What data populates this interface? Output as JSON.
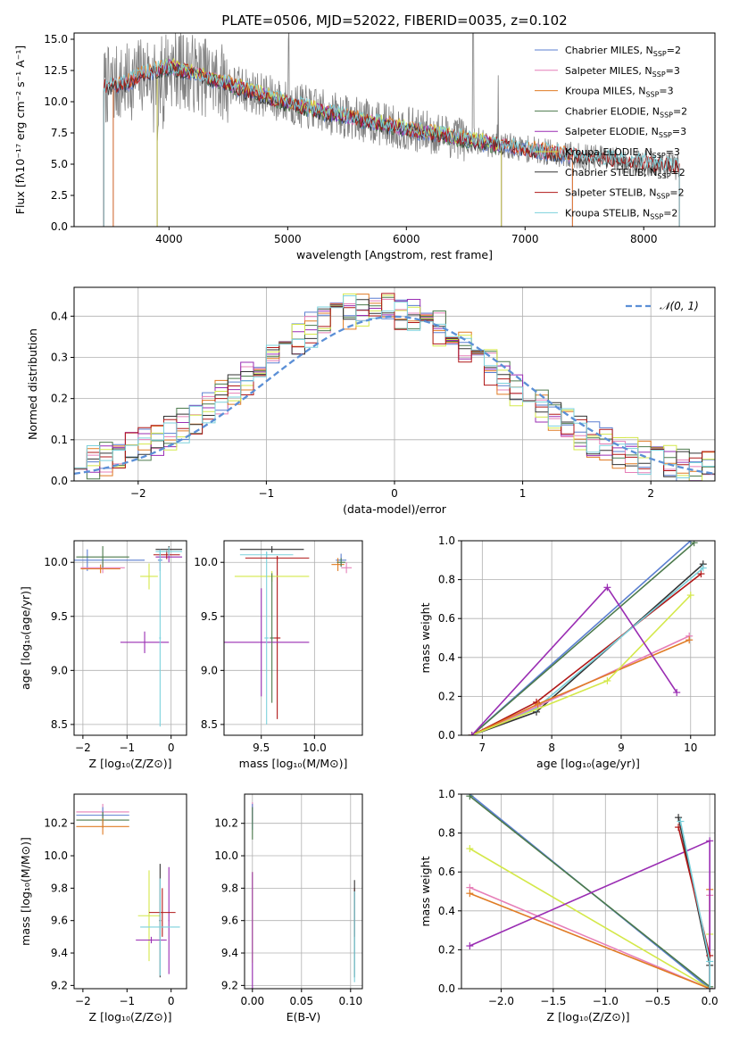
{
  "figure": {
    "title": "PLATE=0506, MJD=52022, FIBERID=0035, z=0.102"
  },
  "colors": {
    "Chabrier MILES": "#5B7FD1",
    "Salpeter MILES": "#E67FB8",
    "Kroupa MILES": "#E07B24",
    "Chabrier ELODIE": "#4C7A4C",
    "Salpeter ELODIE": "#9A2DB3",
    "Kroupa ELODIE": "#D4E84A",
    "Chabrier STELIB": "#333333",
    "Salpeter STELIB": "#B01818",
    "Kroupa STELIB": "#7BD1DC",
    "data": "#808080",
    "normal": "#5B8FD6"
  },
  "chart_data": [
    {
      "id": "spectrum",
      "type": "line",
      "xlabel": "wavelength [Angstrom, rest frame]",
      "ylabel": "Flux [fλ10⁻¹⁷ erg cm⁻² s⁻¹ A⁻¹]",
      "xlim": [
        3200,
        8600
      ],
      "ylim": [
        0,
        15.5
      ],
      "xticks": [
        4000,
        5000,
        6000,
        7000,
        8000
      ],
      "yticks": [
        0.0,
        2.5,
        5.0,
        7.5,
        10.0,
        12.5,
        15.0
      ],
      "legend_position": "top-right",
      "legend": [
        {
          "name": "Chabrier MILES, N",
          "sub": "SSP",
          "suffix": "=2"
        },
        {
          "name": "Salpeter MILES, N",
          "sub": "SSP",
          "suffix": "=3"
        },
        {
          "name": "Kroupa MILES, N",
          "sub": "SSP",
          "suffix": "=3"
        },
        {
          "name": "Chabrier ELODIE, N",
          "sub": "SSP",
          "suffix": "=2"
        },
        {
          "name": "Salpeter ELODIE, N",
          "sub": "SSP",
          "suffix": "=3"
        },
        {
          "name": "Kroupa ELODIE, N",
          "sub": "SSP",
          "suffix": "=3"
        },
        {
          "name": "Chabrier STELIB, N",
          "sub": "SSP",
          "suffix": "=2"
        },
        {
          "name": "Salpeter STELIB, N",
          "sub": "SSP",
          "suffix": "=2"
        },
        {
          "name": "Kroupa STELIB, N",
          "sub": "SSP",
          "suffix": "=2"
        }
      ],
      "continuum": [
        [
          3450,
          11.2
        ],
        [
          3650,
          11.5
        ],
        [
          3800,
          12.3
        ],
        [
          4000,
          12.8
        ],
        [
          4200,
          12.3
        ],
        [
          4400,
          11.7
        ],
        [
          4700,
          10.8
        ],
        [
          5000,
          9.9
        ],
        [
          5300,
          9.2
        ],
        [
          5600,
          8.6
        ],
        [
          5900,
          8.0
        ],
        [
          6200,
          7.5
        ],
        [
          6500,
          7.0
        ],
        [
          6800,
          6.5
        ],
        [
          7100,
          6.1
        ],
        [
          7400,
          5.7
        ],
        [
          7700,
          5.4
        ],
        [
          8000,
          5.1
        ],
        [
          8200,
          4.9
        ],
        [
          8300,
          4.8
        ]
      ],
      "data_range": [
        3450,
        8300
      ],
      "models": [
        {
          "name": "Chabrier MILES",
          "range": [
            3530,
            7400
          ]
        },
        {
          "name": "Salpeter MILES",
          "range": [
            3530,
            7400
          ]
        },
        {
          "name": "Kroupa MILES",
          "range": [
            3530,
            7400
          ]
        },
        {
          "name": "Chabrier ELODIE",
          "range": [
            3900,
            6800
          ]
        },
        {
          "name": "Salpeter ELODIE",
          "range": [
            3900,
            6800
          ]
        },
        {
          "name": "Kroupa ELODIE",
          "range": [
            3900,
            6800
          ]
        },
        {
          "name": "Chabrier STELIB",
          "range": [
            3450,
            8300
          ]
        },
        {
          "name": "Salpeter STELIB",
          "range": [
            3450,
            8300
          ]
        },
        {
          "name": "Kroupa STELIB",
          "range": [
            3450,
            8300
          ]
        }
      ]
    },
    {
      "id": "residuals",
      "type": "line",
      "xlabel": "(data-model)/error",
      "ylabel": "Normed distribution",
      "xlim": [
        -2.5,
        2.5
      ],
      "ylim": [
        0,
        0.47
      ],
      "xticks": [
        -2,
        -1,
        0,
        1,
        2
      ],
      "yticks": [
        0.0,
        0.1,
        0.2,
        0.3,
        0.4
      ],
      "grid": true,
      "legend_position": "top-right",
      "legend": [
        {
          "name": "𝒩(0, 1)",
          "style": "dashed"
        }
      ],
      "bin_width": 0.1
    },
    {
      "id": "age-vs-Z",
      "type": "scatter",
      "xlabel": "Z [log₁₀(Z/Z⊙)]",
      "ylabel": "age  [log₁₀(age/yr)]",
      "xlim": [
        -2.2,
        0.35
      ],
      "ylim": [
        8.4,
        10.2
      ],
      "xticks": [
        -2,
        -1,
        0
      ],
      "yticks": [
        8.5,
        9.0,
        9.5,
        10.0
      ],
      "grid": true,
      "points": [
        {
          "model": "Chabrier MILES",
          "x": -1.9,
          "y": 10.02,
          "xerr": 1.3,
          "yerr": 0.1
        },
        {
          "model": "Chabrier MILES",
          "x": -0.25,
          "y": 10.02,
          "xerr": 0.05,
          "yerr": 0.1
        },
        {
          "model": "Salpeter MILES",
          "x": -1.55,
          "y": 9.95,
          "xerr": 0.5,
          "yerr": 0.05
        },
        {
          "model": "Kroupa MILES",
          "x": -1.6,
          "y": 9.94,
          "xerr": 0.45,
          "yerr": 0.04
        },
        {
          "model": "Chabrier ELODIE",
          "x": -1.55,
          "y": 10.05,
          "xerr": 0.6,
          "yerr": 0.1
        },
        {
          "model": "Salpeter ELODIE",
          "x": -0.6,
          "y": 9.26,
          "xerr": 0.55,
          "yerr": 0.1
        },
        {
          "model": "Salpeter ELODIE",
          "x": -0.05,
          "y": 10.05,
          "xerr": 0.3,
          "yerr": 0.05
        },
        {
          "model": "Kroupa ELODIE",
          "x": -0.5,
          "y": 9.87,
          "xerr": 0.2,
          "yerr": 0.12
        },
        {
          "model": "Chabrier STELIB",
          "x": -0.05,
          "y": 10.12,
          "xerr": 0.3,
          "yerr": 0.03
        },
        {
          "model": "Salpeter STELIB",
          "x": -0.1,
          "y": 10.07,
          "xerr": 0.3,
          "yerr": 0.04
        },
        {
          "model": "Kroupa STELIB",
          "x": -0.05,
          "y": 10.1,
          "xerr": 0.3,
          "yerr": 0.04
        },
        {
          "model": "Kroupa STELIB",
          "x": -0.25,
          "y": 9.3,
          "xerr": 0.02,
          "yerr": 0.82
        }
      ]
    },
    {
      "id": "age-vs-mass",
      "type": "scatter",
      "xlabel": "mass [log₁₀(M/M⊙)]",
      "xlim": [
        9.15,
        10.45
      ],
      "ylim": [
        8.4,
        10.2
      ],
      "xticks": [
        9.5,
        10.0
      ],
      "yticks": [
        8.5,
        9.0,
        9.5,
        10.0
      ],
      "grid": true,
      "points": [
        {
          "model": "Chabrier STELIB",
          "x": 9.6,
          "y": 10.12,
          "xerr": 0.3,
          "yerr": 0.03
        },
        {
          "model": "Salpeter STELIB",
          "x": 9.65,
          "y": 9.3,
          "xerr": 0.03,
          "yerr": 0.75
        },
        {
          "model": "Salpeter ELODIE",
          "x": 9.5,
          "y": 9.26,
          "xerr": 0.45,
          "yerr": 0.5
        },
        {
          "model": "Kroupa ELODIE",
          "x": 9.6,
          "y": 9.87,
          "xerr": 0.35,
          "yerr": 0.05
        },
        {
          "model": "Kroupa STELIB",
          "x": 9.55,
          "y": 10.07,
          "xerr": 0.25,
          "yerr": 0.03
        },
        {
          "model": "Kroupa STELIB",
          "x": 9.55,
          "y": 9.3,
          "xerr": 0.02,
          "yerr": 0.8
        },
        {
          "model": "Chabrier ELODIE",
          "x": 9.6,
          "y": 9.3,
          "xerr": 0.02,
          "yerr": 0.6
        },
        {
          "model": "Salpeter STELIB",
          "x": 9.65,
          "y": 10.04,
          "xerr": 0.3,
          "yerr": 0.02
        },
        {
          "model": "Chabrier MILES",
          "x": 10.25,
          "y": 10.02,
          "xerr": 0.05,
          "yerr": 0.06
        },
        {
          "model": "Salpeter MILES",
          "x": 10.3,
          "y": 9.95,
          "xerr": 0.05,
          "yerr": 0.05
        },
        {
          "model": "Kroupa MILES",
          "x": 10.22,
          "y": 9.98,
          "xerr": 0.06,
          "yerr": 0.06
        },
        {
          "model": "Chabrier ELODIE",
          "x": 10.25,
          "y": 10.0,
          "xerr": 0.04,
          "yerr": 0.04
        }
      ]
    },
    {
      "id": "weight-vs-age",
      "type": "line",
      "xlabel": "age  [log₁₀(age/yr)]",
      "ylabel": "mass weight",
      "xlim": [
        6.7,
        10.35
      ],
      "ylim": [
        0,
        1
      ],
      "xticks": [
        7,
        8,
        9,
        10
      ],
      "yticks": [
        0.0,
        0.2,
        0.4,
        0.6,
        0.8,
        1.0
      ],
      "grid": true,
      "series": [
        {
          "model": "Chabrier MILES",
          "x": [
            6.85,
            10.0
          ],
          "y": [
            0.0,
            1.0
          ]
        },
        {
          "model": "Chabrier ELODIE",
          "x": [
            6.85,
            10.05
          ],
          "y": [
            0.0,
            0.99
          ]
        },
        {
          "model": "Chabrier STELIB",
          "x": [
            6.85,
            7.78,
            10.18
          ],
          "y": [
            0.0,
            0.12,
            0.88
          ]
        },
        {
          "model": "Salpeter STELIB",
          "x": [
            6.85,
            7.78,
            10.15
          ],
          "y": [
            0.0,
            0.17,
            0.83
          ]
        },
        {
          "model": "Kroupa STELIB",
          "x": [
            6.85,
            7.78,
            10.18
          ],
          "y": [
            0.0,
            0.14,
            0.86
          ]
        },
        {
          "model": "Salpeter MILES",
          "x": [
            6.85,
            7.8,
            9.98
          ],
          "y": [
            0.0,
            0.15,
            0.51
          ]
        },
        {
          "model": "Kroupa MILES",
          "x": [
            6.85,
            7.8,
            9.98
          ],
          "y": [
            0.0,
            0.16,
            0.49
          ]
        },
        {
          "model": "Kroupa ELODIE",
          "x": [
            6.85,
            8.8,
            10.0
          ],
          "y": [
            0.0,
            0.28,
            0.72
          ]
        },
        {
          "model": "Salpeter ELODIE",
          "x": [
            6.85,
            8.8,
            9.8
          ],
          "y": [
            0.0,
            0.76,
            0.22
          ]
        }
      ]
    },
    {
      "id": "mass-vs-Z",
      "type": "scatter",
      "xlabel": "Z [log₁₀(Z/Z⊙)]",
      "ylabel": "mass [log₁₀(M/M⊙)]",
      "xlim": [
        -2.2,
        0.35
      ],
      "ylim": [
        9.18,
        10.38
      ],
      "xticks": [
        -2,
        -1,
        0
      ],
      "yticks": [
        9.2,
        9.4,
        9.6,
        9.8,
        10.0,
        10.2
      ],
      "points": [
        {
          "model": "Salpeter MILES",
          "x": -1.55,
          "y": 10.27,
          "xerr": 0.6,
          "yerr": 0.05
        },
        {
          "model": "Chabrier MILES",
          "x": -1.55,
          "y": 10.25,
          "xerr": 0.6,
          "yerr": 0.05
        },
        {
          "model": "Chabrier ELODIE",
          "x": -1.55,
          "y": 10.22,
          "xerr": 0.6,
          "yerr": 0.05
        },
        {
          "model": "Kroupa MILES",
          "x": -1.55,
          "y": 10.18,
          "xerr": 0.6,
          "yerr": 0.05
        },
        {
          "model": "Kroupa ELODIE",
          "x": -0.5,
          "y": 9.63,
          "xerr": 0.25,
          "yerr": 0.28
        },
        {
          "model": "Salpeter ELODIE",
          "x": -0.45,
          "y": 9.48,
          "xerr": 0.35,
          "yerr": 0.02
        },
        {
          "model": "Salpeter ELODIE",
          "x": -0.05,
          "y": 9.6,
          "xerr": 0.01,
          "yerr": 0.33
        },
        {
          "model": "Salpeter STELIB",
          "x": -0.2,
          "y": 9.65,
          "xerr": 0.3,
          "yerr": 0.15
        },
        {
          "model": "Chabrier STELIB",
          "x": -0.25,
          "y": 9.6,
          "xerr": 0.02,
          "yerr": 0.35
        },
        {
          "model": "Kroupa STELIB",
          "x": -0.25,
          "y": 9.56,
          "xerr": 0.45,
          "yerr": 0.3
        }
      ]
    },
    {
      "id": "mass-vs-EBV",
      "type": "scatter",
      "xlabel": "E(B-V)",
      "xlim": [
        -0.008,
        0.112
      ],
      "ylim": [
        9.18,
        10.38
      ],
      "xticks": [
        0.0,
        0.05,
        0.1
      ],
      "yticks": [
        9.2,
        9.4,
        9.6,
        9.8,
        10.0,
        10.2
      ],
      "grid": true,
      "points": [
        {
          "model": "Salpeter MILES",
          "x": 0.0,
          "y": 10.27,
          "xerr": 0.0,
          "yerr": 0.06
        },
        {
          "model": "Chabrier MILES",
          "x": 0.0,
          "y": 10.24,
          "xerr": 0.0,
          "yerr": 0.08
        },
        {
          "model": "Chabrier ELODIE",
          "x": 0.0,
          "y": 10.2,
          "xerr": 0.0,
          "yerr": 0.1
        },
        {
          "model": "Kroupa ELODIE",
          "x": 0.0,
          "y": 9.62,
          "xerr": 0.0,
          "yerr": 0.28
        },
        {
          "model": "Salpeter ELODIE",
          "x": 0.0,
          "y": 9.5,
          "xerr": 0.0,
          "yerr": 0.4
        },
        {
          "model": "Salpeter STELIB",
          "x": 0.104,
          "y": 9.65,
          "xerr": 0.0,
          "yerr": 0.15
        },
        {
          "model": "Chabrier STELIB",
          "x": 0.104,
          "y": 9.55,
          "xerr": 0.0,
          "yerr": 0.3
        },
        {
          "model": "Kroupa STELIB",
          "x": 0.104,
          "y": 9.5,
          "xerr": 0.0,
          "yerr": 0.28
        }
      ]
    },
    {
      "id": "weight-vs-Z",
      "type": "line",
      "xlabel": "Z [log₁₀(Z/Z⊙)]",
      "ylabel": "mass weight",
      "xlim": [
        -2.38,
        0.05
      ],
      "ylim": [
        0,
        1
      ],
      "xticks": [
        -2.0,
        -1.5,
        -1.0,
        -0.5,
        0.0
      ],
      "yticks": [
        0.0,
        0.2,
        0.4,
        0.6,
        0.8,
        1.0
      ],
      "grid": true,
      "series": [
        {
          "model": "Chabrier MILES",
          "x": [
            -2.3,
            0.0
          ],
          "y": [
            1.0,
            0.0
          ]
        },
        {
          "model": "Chabrier ELODIE",
          "x": [
            -2.3,
            0.0
          ],
          "y": [
            0.99,
            0.01
          ]
        },
        {
          "model": "Kroupa ELODIE",
          "x": [
            -2.3,
            0.0,
            0.0
          ],
          "y": [
            0.72,
            0.0,
            0.28
          ]
        },
        {
          "model": "Salpeter MILES",
          "x": [
            -2.3,
            0.0,
            0.0
          ],
          "y": [
            0.52,
            0.0,
            0.48
          ]
        },
        {
          "model": "Kroupa MILES",
          "x": [
            -2.3,
            0.0,
            0.0
          ],
          "y": [
            0.49,
            0.0,
            0.51
          ]
        },
        {
          "model": "Salpeter ELODIE",
          "x": [
            -2.3,
            0.0,
            0.0
          ],
          "y": [
            0.22,
            0.76,
            0.0
          ]
        },
        {
          "model": "Chabrier STELIB",
          "x": [
            -0.3,
            0.0,
            0.0
          ],
          "y": [
            0.88,
            0.12,
            0.0
          ]
        },
        {
          "model": "Salpeter STELIB",
          "x": [
            -0.3,
            0.0,
            0.0
          ],
          "y": [
            0.83,
            0.17,
            0.0
          ]
        },
        {
          "model": "Kroupa STELIB",
          "x": [
            -0.28,
            0.0,
            0.0
          ],
          "y": [
            0.86,
            0.14,
            0.0
          ]
        }
      ]
    }
  ]
}
